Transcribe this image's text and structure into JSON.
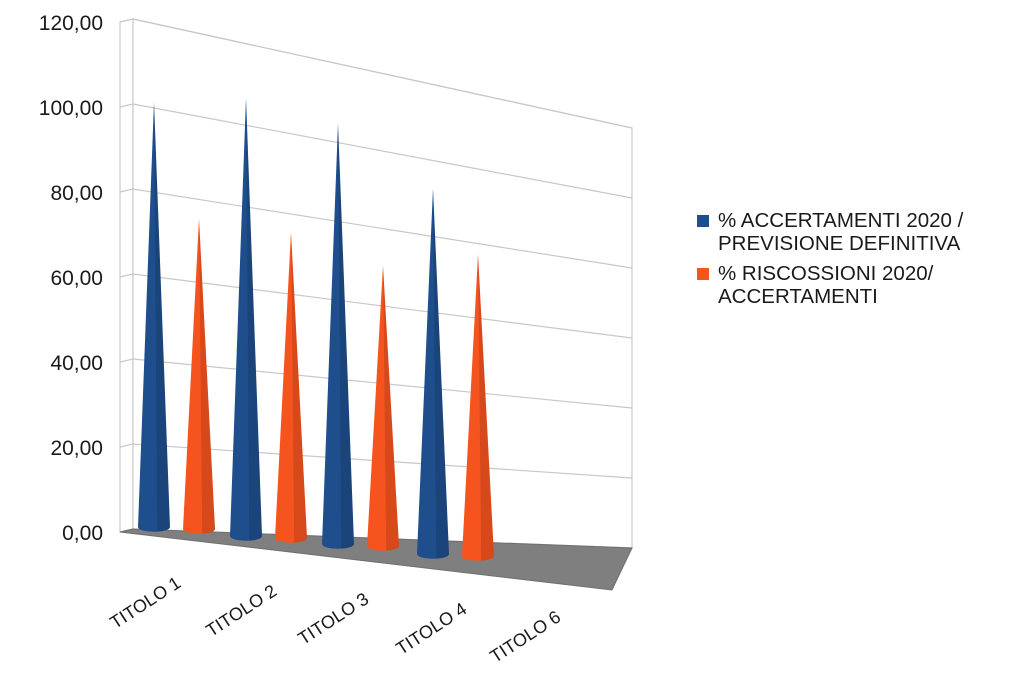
{
  "chart_data": {
    "type": "bar",
    "subtype": "3d-cone",
    "title": "",
    "xlabel": "",
    "ylabel": "",
    "ylim": [
      0,
      120
    ],
    "yticks": [
      "0,00",
      "20,00",
      "40,00",
      "60,00",
      "80,00",
      "100,00",
      "120,00"
    ],
    "categories": [
      "TITOLO 1",
      "TITOLO 2",
      "TITOLO 3",
      "TITOLO 4",
      "TITOLO 6"
    ],
    "series": [
      {
        "name": "% ACCERTAMENTI 2020 / PREVISIONE DEFINITIVA",
        "color": "#1f4e8c",
        "values": [
          100,
          103,
          99,
          86,
          null
        ]
      },
      {
        "name": "% RISCOSSIONI 2020/ ACCERTAMENTI",
        "color": "#f5541e",
        "values": [
          73,
          72,
          66,
          71,
          null
        ]
      }
    ],
    "grid": true,
    "legend_position": "right"
  },
  "legend": {
    "items": [
      {
        "text": "% ACCERTAMENTI 2020 /\nPREVISIONE DEFINITIVA",
        "color": "#1f4e8c"
      },
      {
        "text": "% RISCOSSIONI 2020/\nACCERTAMENTI",
        "color": "#f5541e"
      }
    ]
  }
}
